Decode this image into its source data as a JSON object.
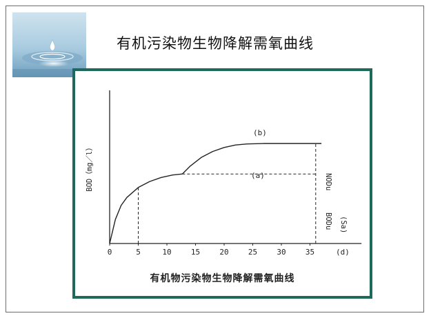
{
  "slide": {
    "title": "有机污染物生物降解需氧曲线",
    "corner_image_icon": "water-drop-icon"
  },
  "diagram": {
    "caption": "有机物污染物生物降解需氧曲线",
    "ylabel": "BOD（mg／l）",
    "xlabel": "(d)",
    "x_ticks": [
      "0",
      "5",
      "10",
      "15",
      "20",
      "25",
      "30",
      "35"
    ],
    "curve_b_label": "(b)",
    "curve_a_label": "(a)",
    "label_nod": "NODu",
    "label_bod": "BODu",
    "label_sa": "(Sa)",
    "line_color": "#222222",
    "frame_color": "#1e6a5a"
  },
  "chart_data": {
    "type": "line",
    "title": "有机物污染物生物降解需氧曲线",
    "xlabel": "(d)",
    "ylabel": "BOD（mg／l）",
    "xlim": [
      0,
      44
    ],
    "x_ticks": [
      0,
      5,
      10,
      15,
      20,
      25,
      30,
      35
    ],
    "series": [
      {
        "name": "(a)",
        "x": [
          0,
          1,
          2,
          3,
          5,
          7,
          9,
          11,
          12.7
        ],
        "y": [
          0,
          0.24,
          0.38,
          0.46,
          0.56,
          0.62,
          0.66,
          0.685,
          0.695
        ]
      },
      {
        "name": "(b)",
        "x": [
          12.7,
          14,
          16,
          18,
          20,
          22,
          24,
          27,
          30,
          33,
          35,
          37
        ],
        "y": [
          0.695,
          0.77,
          0.86,
          0.92,
          0.96,
          0.985,
          0.995,
          1.0,
          1.0,
          1.0,
          1.0,
          1.0
        ]
      }
    ],
    "reference_lines": [
      {
        "type": "vertical",
        "x": 5,
        "from_y": 0,
        "to_y": 0.56
      },
      {
        "type": "horizontal",
        "y": 0.695,
        "from_x": 12.7,
        "to_x": 36
      },
      {
        "type": "vertical",
        "x": 36,
        "from_y": 0,
        "to_y": 1.0
      }
    ]
  }
}
